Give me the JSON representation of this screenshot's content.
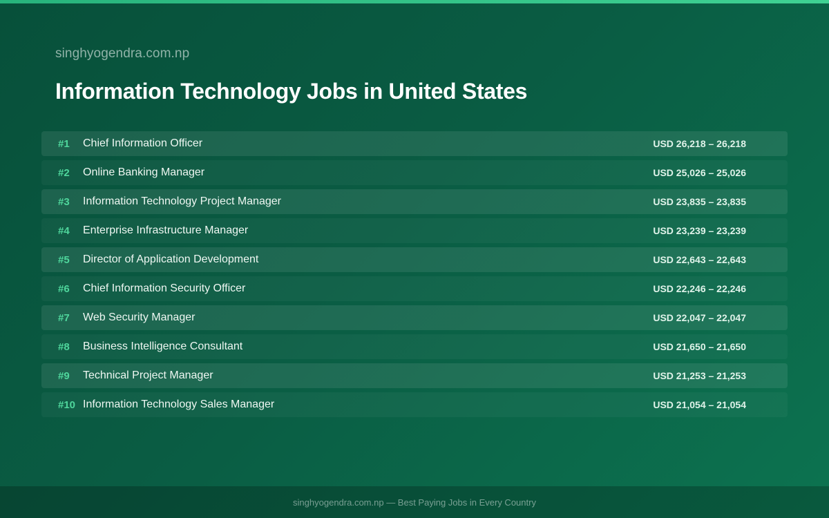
{
  "site_name": "singhyogendra.com.np",
  "title": "Information Technology Jobs in United States",
  "jobs": [
    {
      "rank": "#1",
      "title": "Chief Information Officer",
      "salary": "USD 26,218 – 26,218"
    },
    {
      "rank": "#2",
      "title": "Online Banking Manager",
      "salary": "USD 25,026 – 25,026"
    },
    {
      "rank": "#3",
      "title": "Information Technology Project Manager",
      "salary": "USD 23,835 – 23,835"
    },
    {
      "rank": "#4",
      "title": "Enterprise Infrastructure Manager",
      "salary": "USD 23,239 – 23,239"
    },
    {
      "rank": "#5",
      "title": "Director of Application Development",
      "salary": "USD 22,643 – 22,643"
    },
    {
      "rank": "#6",
      "title": "Chief Information Security Officer",
      "salary": "USD 22,246 – 22,246"
    },
    {
      "rank": "#7",
      "title": "Web Security Manager",
      "salary": "USD 22,047 – 22,047"
    },
    {
      "rank": "#8",
      "title": "Business Intelligence Consultant",
      "salary": "USD 21,650 – 21,650"
    },
    {
      "rank": "#9",
      "title": "Technical Project Manager",
      "salary": "USD 21,253 – 21,253"
    },
    {
      "rank": "#10",
      "title": "Information Technology Sales Manager",
      "salary": "USD 21,054 – 21,054"
    }
  ],
  "footer": {
    "text": "singhyogendra.com.np — Best Paying Jobs in Every Country"
  },
  "colors": {
    "accent": "#4fd69c",
    "background": "#0a5c43"
  }
}
